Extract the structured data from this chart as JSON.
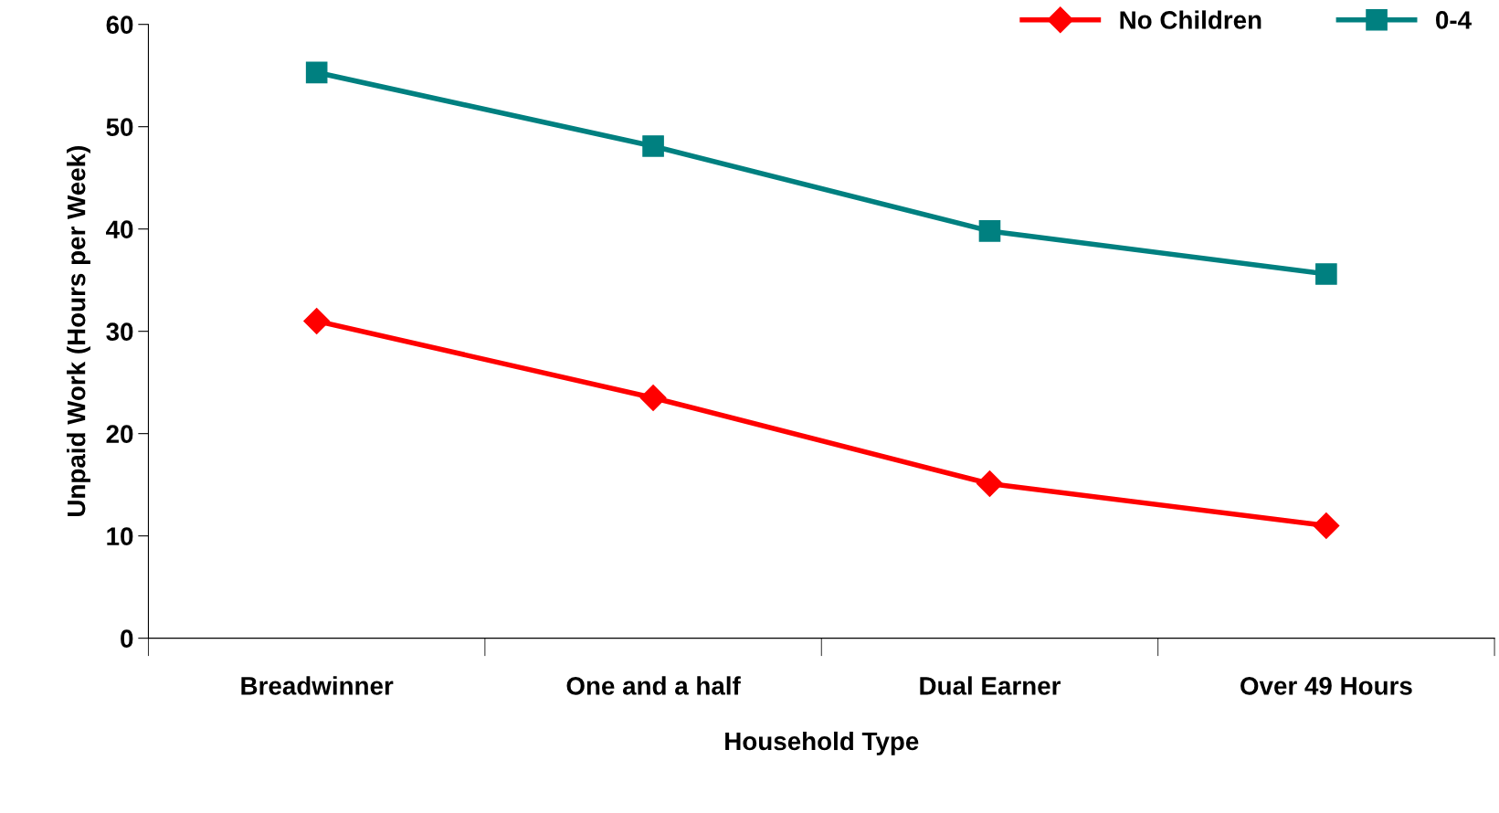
{
  "chart_data": {
    "type": "line",
    "xlabel": "Household Type",
    "ylabel": "Unpaid Work (Hours per Week)",
    "categories": [
      "Breadwinner",
      "One and a half",
      "Dual Earner",
      "Over 49 Hours"
    ],
    "series": [
      {
        "name": "No Children",
        "color": "#ff0000",
        "marker": "diamond",
        "values": [
          31.0,
          23.5,
          15.1,
          11.0
        ]
      },
      {
        "name": "0-4",
        "color": "#008080",
        "marker": "square",
        "values": [
          55.3,
          48.1,
          39.8,
          35.6
        ]
      }
    ],
    "ylim": [
      0,
      60
    ],
    "yticks": [
      0,
      10,
      20,
      30,
      40,
      50,
      60
    ],
    "grid": false,
    "legend": "top right"
  }
}
